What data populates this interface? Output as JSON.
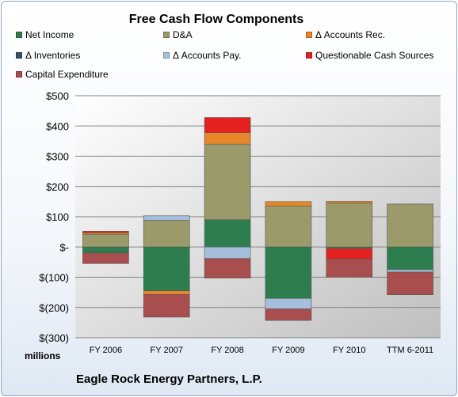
{
  "chart_data": {
    "type": "bar",
    "stacked": true,
    "title": "Free Cash Flow Components",
    "categories": [
      "FY 2006",
      "FY 2007",
      "FY 2008",
      "FY 2009",
      "FY 2010",
      "TTM 6-2011"
    ],
    "ylim": [
      -300,
      500
    ],
    "ytick_values": [
      -300,
      -200,
      -100,
      0,
      100,
      200,
      300,
      400,
      500
    ],
    "ytick_labels": [
      "$(300)",
      "$(200)",
      "$(100)",
      "$-",
      "$100",
      "$200",
      "$300",
      "$400",
      "$500"
    ],
    "yunits": "millions",
    "grid": true,
    "legend_position": "top",
    "series": [
      {
        "name": "Net Income",
        "color": "#2e7d4f",
        "values": [
          -20,
          -145,
          90,
          -170,
          -5,
          -75
        ]
      },
      {
        "name": "D&A",
        "color": "#9a9a6a",
        "values": [
          42,
          88,
          250,
          135,
          145,
          142
        ]
      },
      {
        "name": "Δ Accounts Rec.",
        "color": "#e8862a",
        "values": [
          5,
          -12,
          38,
          15,
          6,
          0
        ]
      },
      {
        "name": "Δ Inventories",
        "color": "#3c4f63",
        "values": [
          0,
          0,
          0,
          0,
          0,
          0
        ]
      },
      {
        "name": "Δ Accounts Pay.",
        "color": "#a6bfdc",
        "values": [
          0,
          15,
          -38,
          -35,
          0,
          -8
        ]
      },
      {
        "name": "Questionable Cash Sources",
        "color": "#e52020",
        "values": [
          5,
          0,
          50,
          0,
          -35,
          0
        ]
      },
      {
        "name": "Capital Expenditure",
        "color": "#a84e4e",
        "values": [
          -35,
          -75,
          -65,
          -38,
          -60,
          -75
        ]
      }
    ]
  },
  "footer": {
    "company": "Eagle Rock Energy Partners, L.P."
  }
}
